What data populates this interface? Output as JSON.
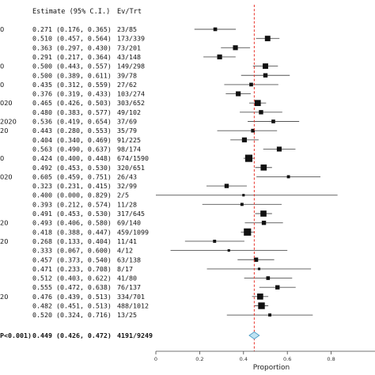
{
  "chart_data": {
    "type": "forest",
    "header": {
      "estimate": "Estimate (95% C.I.)",
      "events": "Ev/Trt"
    },
    "left_fragments": [
      "0",
      "",
      "",
      "",
      "0",
      "",
      "0",
      "",
      "020",
      "",
      "2020",
      "20",
      "",
      "",
      "0",
      "",
      "020",
      "",
      "",
      "",
      "",
      "20",
      "",
      "20",
      "",
      "",
      "",
      "",
      "",
      "20",
      "",
      ""
    ],
    "rows": [
      {
        "estimate_text": "0.271 (0.176, 0.365)",
        "events_text": "23/85",
        "est": 0.271,
        "lo": 0.176,
        "hi": 0.365,
        "weight": 3
      },
      {
        "estimate_text": "0.510 (0.457, 0.564)",
        "events_text": "173/339",
        "est": 0.51,
        "lo": 0.457,
        "hi": 0.564,
        "weight": 6
      },
      {
        "estimate_text": "0.363 (0.297, 0.430)",
        "events_text": "73/201",
        "est": 0.363,
        "lo": 0.297,
        "hi": 0.43,
        "weight": 5
      },
      {
        "estimate_text": "0.291 (0.217, 0.364)",
        "events_text": "43/148",
        "est": 0.291,
        "lo": 0.217,
        "hi": 0.364,
        "weight": 5
      },
      {
        "estimate_text": "0.500 (0.443, 0.557)",
        "events_text": "149/298",
        "est": 0.5,
        "lo": 0.443,
        "hi": 0.557,
        "weight": 6
      },
      {
        "estimate_text": "0.500 (0.389, 0.611)",
        "events_text": "39/78",
        "est": 0.5,
        "lo": 0.389,
        "hi": 0.611,
        "weight": 4
      },
      {
        "estimate_text": "0.435 (0.312, 0.559)",
        "events_text": "27/62",
        "est": 0.435,
        "lo": 0.312,
        "hi": 0.559,
        "weight": 3
      },
      {
        "estimate_text": "0.376 (0.319, 0.433)",
        "events_text": "103/274",
        "est": 0.376,
        "lo": 0.319,
        "hi": 0.433,
        "weight": 5
      },
      {
        "estimate_text": "0.465 (0.426, 0.503)",
        "events_text": "303/652",
        "est": 0.465,
        "lo": 0.426,
        "hi": 0.503,
        "weight": 7
      },
      {
        "estimate_text": "0.480 (0.383, 0.577)",
        "events_text": "49/102",
        "est": 0.48,
        "lo": 0.383,
        "hi": 0.577,
        "weight": 4
      },
      {
        "estimate_text": "0.536 (0.419, 0.654)",
        "events_text": "37/69",
        "est": 0.536,
        "lo": 0.419,
        "hi": 0.654,
        "weight": 3
      },
      {
        "estimate_text": "0.443 (0.280, 0.553)",
        "events_text": "35/79",
        "est": 0.443,
        "lo": 0.28,
        "hi": 0.553,
        "weight": 3
      },
      {
        "estimate_text": "0.404 (0.340, 0.469)",
        "events_text": "91/225",
        "est": 0.404,
        "lo": 0.34,
        "hi": 0.469,
        "weight": 5
      },
      {
        "estimate_text": "0.563 (0.490, 0.637)",
        "events_text": "98/174",
        "est": 0.563,
        "lo": 0.49,
        "hi": 0.637,
        "weight": 5
      },
      {
        "estimate_text": "0.424 (0.400, 0.448)",
        "events_text": "674/1590",
        "est": 0.424,
        "lo": 0.4,
        "hi": 0.448,
        "weight": 9
      },
      {
        "estimate_text": "0.492 (0.453, 0.530)",
        "events_text": "320/651",
        "est": 0.492,
        "lo": 0.453,
        "lo2": 0,
        "hi": 0.53,
        "weight": 7
      },
      {
        "estimate_text": "0.605 (0.459, 0.751)",
        "events_text": "26/43",
        "est": 0.605,
        "lo": 0.459,
        "hi": 0.751,
        "weight": 2
      },
      {
        "estimate_text": "0.323 (0.231, 0.415)",
        "events_text": "32/99",
        "est": 0.323,
        "lo": 0.231,
        "hi": 0.415,
        "weight": 4
      },
      {
        "estimate_text": "0.400 (0.000, 0.829)",
        "events_text": "2/5",
        "est": 0.4,
        "lo": 0.0,
        "hi": 0.829,
        "weight": 1
      },
      {
        "estimate_text": "0.393 (0.212, 0.574)",
        "events_text": "11/28",
        "est": 0.393,
        "lo": 0.212,
        "hi": 0.574,
        "weight": 2
      },
      {
        "estimate_text": "0.491 (0.453, 0.530)",
        "events_text": "317/645",
        "est": 0.491,
        "lo": 0.453,
        "hi": 0.53,
        "weight": 7
      },
      {
        "estimate_text": "0.493 (0.406, 0.580)",
        "events_text": "69/140",
        "est": 0.493,
        "lo": 0.406,
        "hi": 0.58,
        "weight": 4
      },
      {
        "estimate_text": "0.418 (0.388, 0.447)",
        "events_text": "459/1099",
        "est": 0.418,
        "lo": 0.388,
        "hi": 0.447,
        "weight": 9
      },
      {
        "estimate_text": "0.268 (0.133, 0.404)",
        "events_text": "11/41",
        "est": 0.268,
        "lo": 0.133,
        "hi": 0.404,
        "weight": 2
      },
      {
        "estimate_text": "0.333 (0.067, 0.600)",
        "events_text": "4/12",
        "est": 0.333,
        "lo": 0.067,
        "hi": 0.6,
        "weight": 1
      },
      {
        "estimate_text": "0.457 (0.373, 0.540)",
        "events_text": "63/138",
        "est": 0.457,
        "lo": 0.373,
        "hi": 0.54,
        "weight": 4
      },
      {
        "estimate_text": "0.471 (0.233, 0.708)",
        "events_text": "8/17",
        "est": 0.471,
        "lo": 0.233,
        "hi": 0.708,
        "weight": 1
      },
      {
        "estimate_text": "0.512 (0.403, 0.622)",
        "events_text": "41/80",
        "est": 0.512,
        "lo": 0.403,
        "hi": 0.622,
        "weight": 3
      },
      {
        "estimate_text": "0.555 (0.472, 0.638)",
        "events_text": "76/137",
        "est": 0.555,
        "lo": 0.472,
        "hi": 0.638,
        "weight": 4
      },
      {
        "estimate_text": "0.476 (0.439, 0.513)",
        "events_text": "334/701",
        "est": 0.476,
        "lo": 0.439,
        "hi": 0.513,
        "weight": 7
      },
      {
        "estimate_text": "0.482 (0.451, 0.513)",
        "events_text": "488/1012",
        "est": 0.482,
        "lo": 0.451,
        "hi": 0.513,
        "weight": 8
      },
      {
        "estimate_text": "0.520 (0.324, 0.716)",
        "events_text": "13/25",
        "est": 0.52,
        "lo": 0.324,
        "hi": 0.716,
        "weight": 2
      }
    ],
    "summary": {
      "label_fragment": "P<0.001)",
      "estimate_text": "0.449 (0.426, 0.472)",
      "events_text": "4191/9249",
      "est": 0.449,
      "lo": 0.426,
      "hi": 0.472
    },
    "x_axis": {
      "label": "Proportion",
      "ticks": [
        0,
        0.2,
        0.4,
        0.6,
        0.8
      ],
      "tick_labels": [
        "0",
        "0.2",
        "0.4",
        "0.6",
        "0.8"
      ],
      "range": [
        0,
        1
      ]
    },
    "reference_line": {
      "value": 0.449,
      "color": "#e8332a"
    },
    "colors": {
      "marker": "#111111",
      "ci": "#555555",
      "summary_fill": "#bfe3f2",
      "summary_stroke": "#4a9ac4"
    }
  }
}
